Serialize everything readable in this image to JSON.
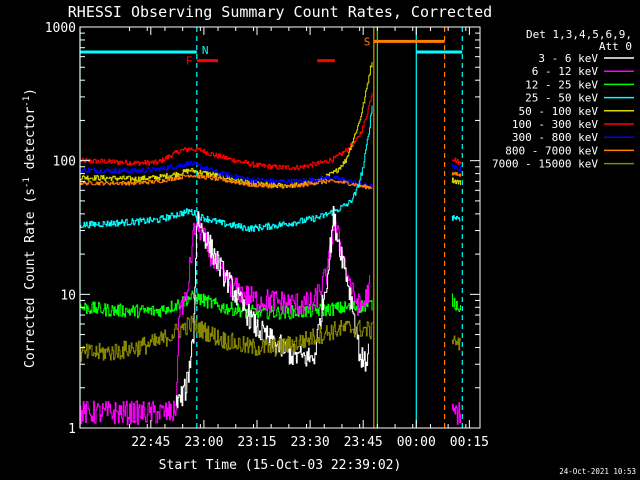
{
  "chart_data": {
    "type": "line",
    "title": "RHESSI Observing Summary Count Rates, Corrected",
    "xlabel": "Start Time (15-Oct-03 22:39:02)",
    "ylabel_main": "Corrected Count Rate (s",
    "ylabel_sup1": "-1",
    "ylabel_mid": " detector",
    "ylabel_sup2": "-1",
    "ylabel_end": ")",
    "yscale": "log",
    "ylim": [
      1,
      1000
    ],
    "y_ticks": [
      {
        "value": 1,
        "label": "1"
      },
      {
        "value": 10,
        "label": "10"
      },
      {
        "value": 100,
        "label": "100"
      },
      {
        "value": 1000,
        "label": "1000"
      }
    ],
    "xlim": [
      -14,
      99
    ],
    "x_ticks": [
      {
        "value": 6,
        "label": "22:45"
      },
      {
        "value": 21,
        "label": "23:00"
      },
      {
        "value": 36,
        "label": "23:15"
      },
      {
        "value": 51,
        "label": "23:30"
      },
      {
        "value": 66,
        "label": "23:45"
      },
      {
        "value": 81,
        "label": "00:00"
      },
      {
        "value": 96,
        "label": "00:15"
      }
    ],
    "detector_label": "Det 1,3,4,5,6,9,",
    "attenuator_label": "Att 0",
    "flag_labels": {
      "night": "N",
      "flare": "F",
      "saa": "S"
    },
    "timestamp": "24-Oct-2021 10:53",
    "series": [
      {
        "name": "3 - 6 keV",
        "color": "#ffffff"
      },
      {
        "name": "6 - 12 keV",
        "color": "#ff00ff"
      },
      {
        "name": "12 - 25 keV",
        "color": "#00ff00"
      },
      {
        "name": "25 - 50 keV",
        "color": "#00ffff"
      },
      {
        "name": "50 - 100 keV",
        "color": "#d8d800"
      },
      {
        "name": "100 - 300 keV",
        "color": "#ff0000"
      },
      {
        "name": "300 - 800 keV",
        "color": "#0000ff"
      },
      {
        "name": "800 - 7000 keV",
        "color": "#ff8000"
      },
      {
        "name": "7000 - 15000 keV",
        "color": "#888800"
      }
    ],
    "tracks": [
      {
        "series": 5,
        "segments": [
          {
            "x": [
              -14,
              -5,
              2,
              8,
              14,
              17,
              20,
              24,
              30,
              36,
              42,
              48,
              54,
              58,
              61,
              64,
              66,
              67.5,
              68.5
            ],
            "y": [
              100,
              98,
              96,
              97,
              118,
              123,
              120,
              110,
              100,
              92,
              89,
              89,
              96,
              104,
              118,
              140,
              180,
              250,
              330
            ]
          },
          {
            "x": [
              91,
              93.5
            ],
            "y": [
              105,
              95
            ]
          }
        ]
      },
      {
        "series": 4,
        "segments": [
          {
            "x": [
              -14,
              -5,
              2,
              8,
              14,
              17,
              20,
              26,
              34,
              42,
              48,
              54,
              58,
              61,
              63,
              65,
              66.5,
              67.5,
              68.5
            ],
            "y": [
              75,
              74,
              73,
              75,
              80,
              85,
              82,
              76,
              68,
              65,
              66,
              72,
              82,
              100,
              140,
              200,
              300,
              420,
              560
            ]
          },
          {
            "x": [
              91,
              93.5
            ],
            "y": [
              72,
              68
            ]
          }
        ]
      },
      {
        "series": 6,
        "segments": [
          {
            "x": [
              -14,
              -5,
              2,
              8,
              14,
              17,
              20,
              26,
              34,
              42,
              48,
              52,
              56,
              60,
              64,
              66,
              68.5
            ],
            "y": [
              85,
              84,
              84,
              86,
              92,
              96,
              90,
              80,
              72,
              70,
              70,
              72,
              75,
              72,
              68,
              66,
              64
            ]
          },
          {
            "x": [
              91,
              93.5
            ],
            "y": [
              90,
              86
            ]
          }
        ]
      },
      {
        "series": 7,
        "segments": [
          {
            "x": [
              -14,
              -5,
              2,
              8,
              14,
              17,
              20,
              26,
              34,
              42,
              48,
              52,
              56,
              60,
              64,
              66,
              68.5
            ],
            "y": [
              68,
              68,
              68,
              70,
              75,
              78,
              76,
              72,
              66,
              64,
              65,
              68,
              70,
              69,
              66,
              64,
              63
            ]
          },
          {
            "x": [
              91,
              93.5
            ],
            "y": [
              80,
              78
            ]
          }
        ]
      },
      {
        "series": 3,
        "segments": [
          {
            "x": [
              -14,
              -5,
              2,
              8,
              14,
              17,
              20,
              26,
              34,
              42,
              48,
              54,
              58,
              62,
              64,
              66,
              67.5,
              68.5
            ],
            "y": [
              33,
              34,
              35,
              36,
              40,
              42,
              38,
              34,
              31,
              33,
              35,
              38,
              42,
              48,
              58,
              90,
              160,
              260
            ]
          },
          {
            "x": [
              91,
              93.5
            ],
            "y": [
              38,
              37
            ]
          }
        ]
      },
      {
        "series": 2,
        "segments": [
          {
            "x": [
              -14,
              -5,
              2,
              8,
              14,
              17,
              20,
              26,
              34,
              42,
              48,
              54,
              58,
              62,
              66,
              68.5
            ],
            "y": [
              8,
              7.6,
              7.5,
              7.5,
              8.5,
              9.5,
              9.2,
              8,
              7.4,
              7.3,
              7.4,
              7.6,
              7.8,
              8,
              8.2,
              8.4
            ]
          },
          {
            "x": [
              91,
              93.5
            ],
            "y": [
              9,
              8
            ]
          }
        ]
      },
      {
        "series": 1,
        "segments": [
          {
            "x": [
              -14,
              13,
              13.5,
              14,
              16,
              18,
              19,
              20,
              24,
              28,
              32,
              36,
              40,
              46,
              52,
              56,
              57.5,
              59,
              61,
              63,
              65,
              66.5,
              68
            ],
            "y": [
              1.3,
              1.3,
              3,
              8,
              9,
              28,
              35,
              30,
              17,
              12,
              10,
              9,
              9,
              8.5,
              8.5,
              15,
              33,
              26,
              16,
              10,
              8,
              9,
              12
            ]
          },
          {
            "x": [
              91,
              93.5
            ],
            "y": [
              1.3,
              1.3
            ]
          }
        ]
      },
      {
        "series": 0,
        "segments": [
          {
            "x": [
              13,
              14,
              16,
              18,
              19,
              20,
              23,
              26,
              29,
              32,
              36,
              40,
              46,
              52,
              56,
              57.5,
              59,
              61,
              63,
              65,
              66.5,
              67.5
            ],
            "y": [
              1.5,
              1.6,
              2,
              5,
              40,
              32,
              22,
              15,
              11,
              8,
              5.5,
              4.5,
              3.5,
              3.3,
              15,
              38,
              25,
              15,
              8,
              3.5,
              3,
              4
            ]
          }
        ]
      },
      {
        "series": 8,
        "segments": [
          {
            "x": [
              -14,
              -5,
              2,
              8,
              14,
              17,
              20,
              26,
              34,
              42,
              48,
              54,
              58,
              62,
              66,
              68.5
            ],
            "y": [
              3.6,
              3.7,
              4,
              4.4,
              5.4,
              6,
              5.5,
              4.6,
              4,
              4,
              4.4,
              5,
              5.4,
              5.6,
              5.5,
              5.3
            ]
          },
          {
            "x": [
              91,
              93.5
            ],
            "y": [
              5,
              4
            ]
          }
        ]
      }
    ],
    "flag_bars": [
      {
        "kind": "night",
        "color": "#00ffff",
        "y": 650,
        "x_ranges": [
          [
            -14,
            19
          ],
          [
            81,
            94
          ]
        ]
      },
      {
        "kind": "flare",
        "color": "#ff0000",
        "y": 560,
        "x_ranges": [
          [
            19,
            25
          ],
          [
            53,
            58
          ]
        ]
      },
      {
        "kind": "saa",
        "color": "#ff8000",
        "y": 780,
        "x_ranges": [
          [
            69,
            89
          ]
        ]
      }
    ],
    "markers": [
      {
        "x": -14,
        "color": "#00ffff",
        "style": "solid"
      },
      {
        "x": 19,
        "color": "#00ffff",
        "style": "dashed"
      },
      {
        "x": 69,
        "color": "#ff8000",
        "style": "solid"
      },
      {
        "x": 70,
        "color": "#00ff00",
        "style": "solid"
      },
      {
        "x": 81,
        "color": "#00ffff",
        "style": "solid"
      },
      {
        "x": 89,
        "color": "#ff8000",
        "style": "dashed"
      },
      {
        "x": 94,
        "color": "#00ffff",
        "style": "dashed"
      }
    ]
  }
}
